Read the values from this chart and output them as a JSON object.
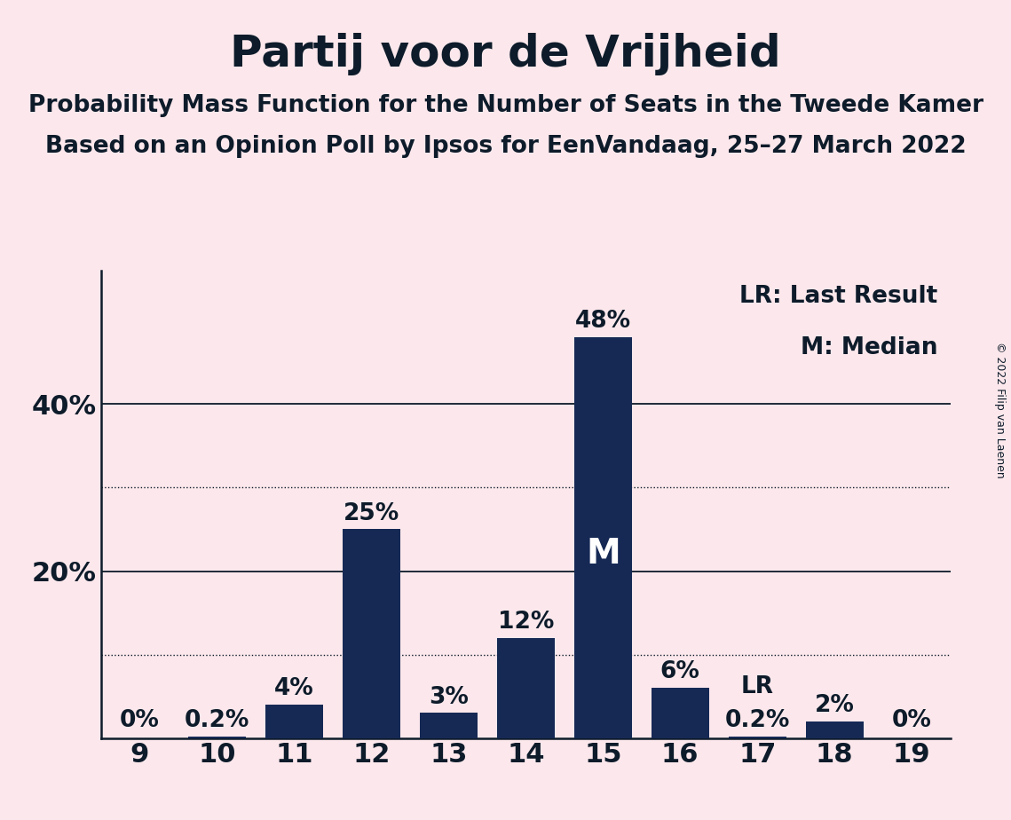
{
  "title": "Partij voor de Vrijheid",
  "subtitle1": "Probability Mass Function for the Number of Seats in the Tweede Kamer",
  "subtitle2": "Based on an Opinion Poll by Ipsos for EenVandaag, 25–27 March 2022",
  "copyright": "© 2022 Filip van Laenen",
  "categories": [
    9,
    10,
    11,
    12,
    13,
    14,
    15,
    16,
    17,
    18,
    19
  ],
  "values": [
    0.0,
    0.2,
    4.0,
    25.0,
    3.0,
    12.0,
    48.0,
    6.0,
    0.2,
    2.0,
    0.0
  ],
  "bar_color": "#162955",
  "background_color": "#fce8ec",
  "title_color": "#0d1b2a",
  "ylim": [
    0,
    56
  ],
  "dotted_lines": [
    10,
    30
  ],
  "solid_lines": [
    20,
    40
  ],
  "median_seat": 15,
  "lr_seat": 17,
  "bar_labels": [
    "0%",
    "0.2%",
    "4%",
    "25%",
    "3%",
    "12%",
    "48%",
    "6%",
    "0.2%",
    "2%",
    "0%"
  ],
  "legend_lr": "LR: Last Result",
  "legend_m": "M: Median",
  "title_fontsize": 36,
  "subtitle_fontsize": 19,
  "bar_label_fontsize": 19,
  "axis_label_fontsize": 22,
  "copyright_fontsize": 9,
  "bar_width": 0.75
}
